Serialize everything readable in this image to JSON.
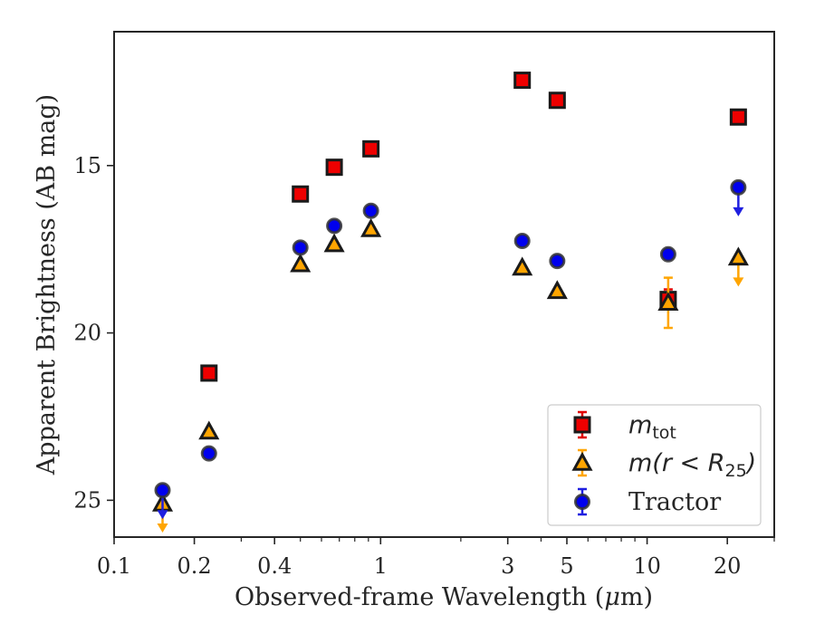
{
  "chart_data": {
    "type": "scatter",
    "xscale": "log",
    "yaxis_inverted": true,
    "xlabel": "Observed-frame Wavelength (μm)",
    "xlabel_pre": "Observed-frame Wavelength (",
    "xlabel_mu": "μ",
    "xlabel_post": "m)",
    "ylabel": "Apparent Brightness (AB mag)",
    "xlim": [
      0.1,
      30
    ],
    "ylim": [
      26.1,
      11.0
    ],
    "xticks": [
      0.1,
      0.2,
      0.4,
      1,
      3,
      5,
      10,
      20
    ],
    "xtick_labels": [
      "0.1",
      "0.2",
      "0.4",
      "1",
      "3",
      "5",
      "10",
      "20"
    ],
    "yticks": [
      15,
      20,
      25
    ],
    "ytick_labels": [
      "15",
      "20",
      "25"
    ],
    "legend_position": "lower right",
    "series": [
      {
        "name": "m_tot",
        "label_main": "m",
        "label_sub": "tot",
        "marker": "square",
        "color": "#ee0000",
        "errcolor": "#e00000",
        "points": [
          {
            "x": 0.227,
            "y": 21.2
          },
          {
            "x": 0.5,
            "y": 15.85
          },
          {
            "x": 0.67,
            "y": 15.05
          },
          {
            "x": 0.92,
            "y": 14.5
          },
          {
            "x": 3.4,
            "y": 12.45
          },
          {
            "x": 4.6,
            "y": 13.05
          },
          {
            "x": 12.0,
            "y": 19.0,
            "err": 0.3
          },
          {
            "x": 22.0,
            "y": 13.55
          }
        ]
      },
      {
        "name": "m(r < R_25)",
        "label_main": "m(r < R",
        "label_sub": "25",
        "label_tail": ")",
        "marker": "triangle",
        "color": "#ffa500",
        "errcolor": "#ffa500",
        "points": [
          {
            "x": 0.152,
            "y": 25.1,
            "upper_limit": true
          },
          {
            "x": 0.227,
            "y": 22.95
          },
          {
            "x": 0.5,
            "y": 17.95
          },
          {
            "x": 0.67,
            "y": 17.35
          },
          {
            "x": 0.92,
            "y": 16.9
          },
          {
            "x": 3.4,
            "y": 18.05
          },
          {
            "x": 4.6,
            "y": 18.75
          },
          {
            "x": 12.0,
            "y": 19.1,
            "err": 0.75
          },
          {
            "x": 22.0,
            "y": 17.75,
            "upper_limit": true
          }
        ]
      },
      {
        "name": "Tractor",
        "label_main": "Tractor",
        "marker": "circle",
        "color": "#0000ee",
        "errcolor": "#1f1fe0",
        "points": [
          {
            "x": 0.152,
            "y": 24.7,
            "upper_limit": true
          },
          {
            "x": 0.227,
            "y": 23.6
          },
          {
            "x": 0.5,
            "y": 17.45
          },
          {
            "x": 0.67,
            "y": 16.8
          },
          {
            "x": 0.92,
            "y": 16.35
          },
          {
            "x": 3.4,
            "y": 17.25
          },
          {
            "x": 4.6,
            "y": 17.85
          },
          {
            "x": 12.0,
            "y": 17.65
          },
          {
            "x": 22.0,
            "y": 15.65,
            "upper_limit": true
          }
        ]
      }
    ]
  }
}
